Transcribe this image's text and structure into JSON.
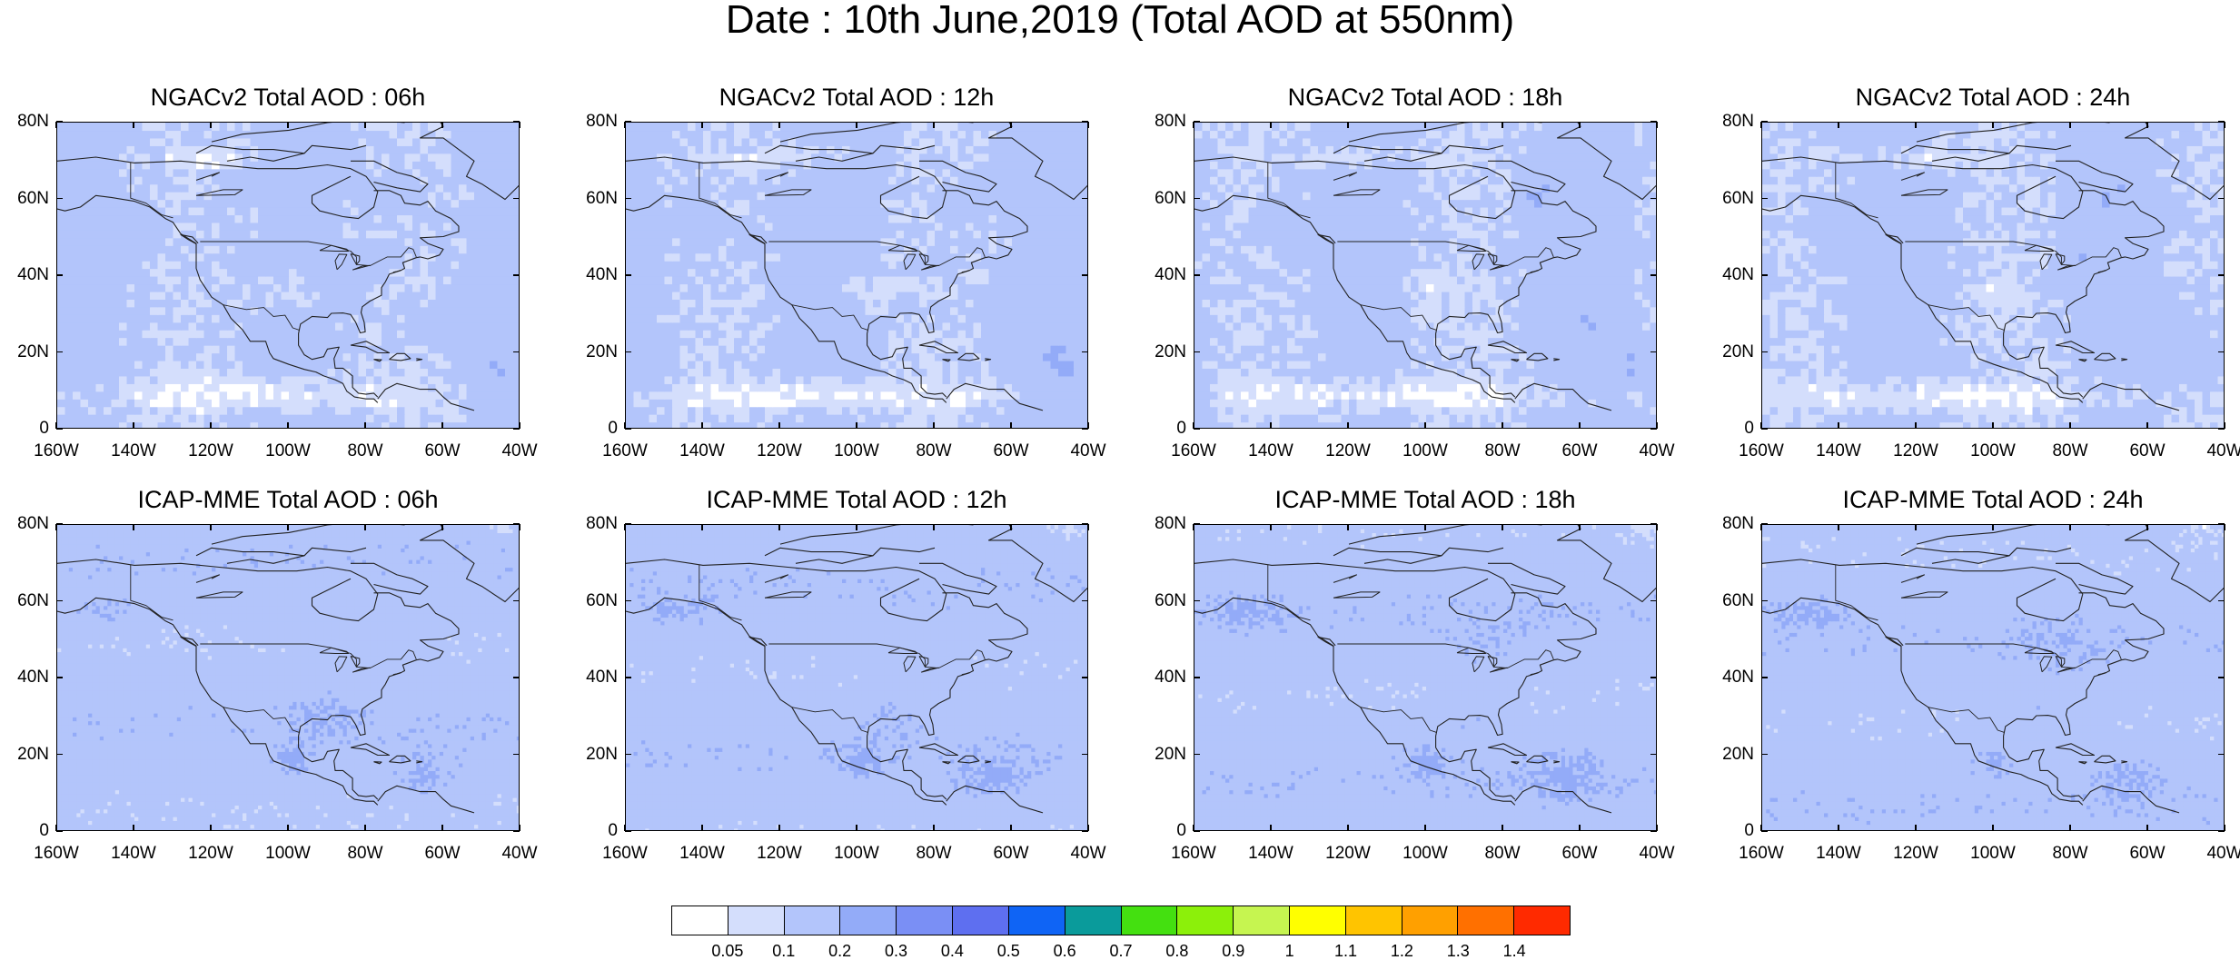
{
  "title": "Date : 10th June,2019 (Total AOD at 550nm)",
  "chart_data": [
    {
      "type": "heatmap",
      "title": "NGACv2 Total AOD : 06h",
      "model": "NGACv2",
      "hour": "06h",
      "xlabel": "",
      "ylabel": "",
      "xlim": [
        -160,
        -40
      ],
      "ylim": [
        0,
        80
      ]
    },
    {
      "type": "heatmap",
      "title": "NGACv2 Total AOD : 12h",
      "model": "NGACv2",
      "hour": "12h",
      "xlabel": "",
      "ylabel": "",
      "xlim": [
        -160,
        -40
      ],
      "ylim": [
        0,
        80
      ]
    },
    {
      "type": "heatmap",
      "title": "NGACv2 Total AOD : 18h",
      "model": "NGACv2",
      "hour": "18h",
      "xlabel": "",
      "ylabel": "",
      "xlim": [
        -160,
        -40
      ],
      "ylim": [
        0,
        80
      ]
    },
    {
      "type": "heatmap",
      "title": "NGACv2 Total AOD : 24h",
      "model": "NGACv2",
      "hour": "24h",
      "xlabel": "",
      "ylabel": "",
      "xlim": [
        -160,
        -40
      ],
      "ylim": [
        0,
        80
      ]
    },
    {
      "type": "heatmap",
      "title": "ICAP-MME Total AOD : 06h",
      "model": "ICAP-MME",
      "hour": "06h",
      "xlabel": "",
      "ylabel": "",
      "xlim": [
        -160,
        -40
      ],
      "ylim": [
        0,
        80
      ]
    },
    {
      "type": "heatmap",
      "title": "ICAP-MME Total AOD : 12h",
      "model": "ICAP-MME",
      "hour": "12h",
      "xlabel": "",
      "ylabel": "",
      "xlim": [
        -160,
        -40
      ],
      "ylim": [
        0,
        80
      ]
    },
    {
      "type": "heatmap",
      "title": "ICAP-MME Total AOD : 18h",
      "model": "ICAP-MME",
      "hour": "18h",
      "xlabel": "",
      "ylabel": "",
      "xlim": [
        -160,
        -40
      ],
      "ylim": [
        0,
        80
      ]
    },
    {
      "type": "heatmap",
      "title": "ICAP-MME Total AOD : 24h",
      "model": "ICAP-MME",
      "hour": "24h",
      "xlabel": "",
      "ylabel": "",
      "xlim": [
        -160,
        -40
      ],
      "ylim": [
        0,
        80
      ]
    }
  ],
  "axes": {
    "lat_ticks": [
      "80N",
      "60N",
      "40N",
      "20N",
      "0"
    ],
    "lat_values": [
      80,
      60,
      40,
      20,
      0
    ],
    "lon_ticks": [
      "160W",
      "140W",
      "120W",
      "100W",
      "80W",
      "60W",
      "40W"
    ],
    "lon_values": [
      -160,
      -140,
      -120,
      -100,
      -80,
      -60,
      -40
    ]
  },
  "colorbar": {
    "labels": [
      "0.05",
      "0.1",
      "0.2",
      "0.3",
      "0.4",
      "0.5",
      "0.6",
      "0.7",
      "0.8",
      "0.9",
      "1",
      "1.1",
      "1.2",
      "1.3",
      "1.4"
    ],
    "colors": [
      "#ffffff",
      "#d4defc",
      "#b3c5fb",
      "#93abf8",
      "#7a8ff5",
      "#5e6ff0",
      "#0f64f5",
      "#0a9b9b",
      "#44e010",
      "#8cf00a",
      "#c6f550",
      "#ffff00",
      "#ffc400",
      "#ffa000",
      "#ff7000",
      "#ff2a00"
    ]
  }
}
